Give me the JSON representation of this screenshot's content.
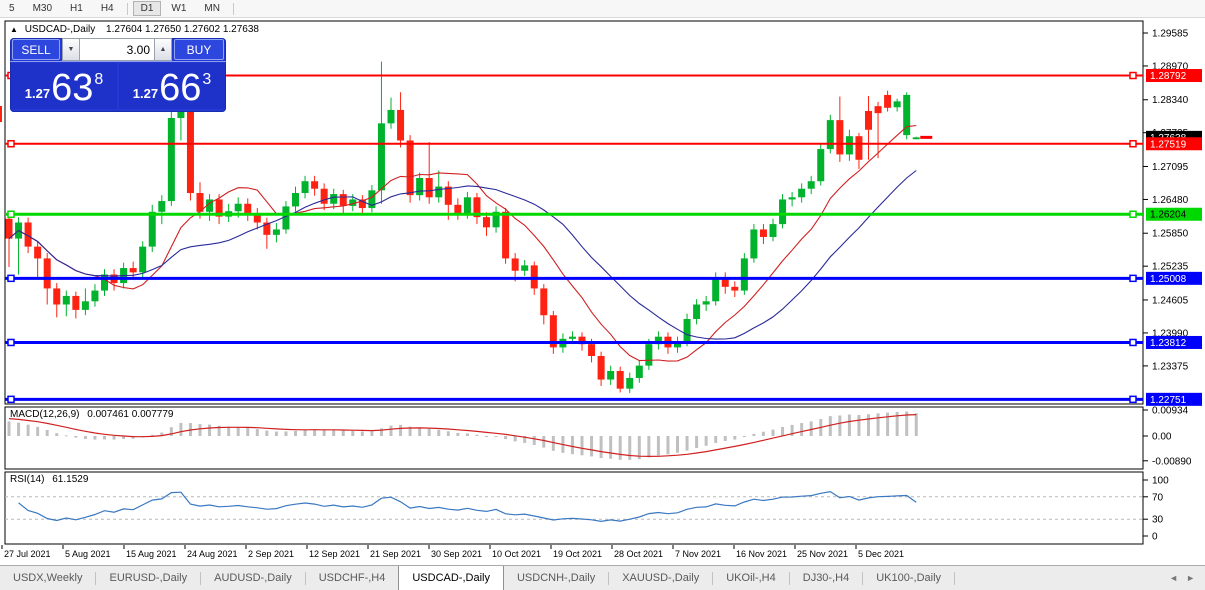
{
  "toolbar": {
    "items": [
      "5",
      "M30",
      "H1",
      "H4",
      "D1",
      "W1",
      "MN"
    ],
    "active": "D1",
    "separators_after": [
      "H4",
      "MN"
    ]
  },
  "chart_header": {
    "collapse_icon": "▲",
    "title": "USDCAD-,Daily",
    "ohlc_string": "1.27604 1.27650 1.27602 1.27638"
  },
  "trade_panel": {
    "sell_label": "SELL",
    "buy_label": "BUY",
    "volume": "3.00",
    "spin_down_icon": "▼",
    "spin_up_icon": "▲",
    "sell_price": {
      "small": "1.27",
      "big": "63",
      "sup": "8"
    },
    "buy_price": {
      "small": "1.27",
      "big": "66",
      "sup": "3"
    }
  },
  "indicators": {
    "macd": {
      "name": "MACD(12,26,9)",
      "values": "0.007461 0.007779",
      "axis_labels": [
        "0.00934",
        "0.00",
        "-0.00890"
      ],
      "params": [
        12,
        26,
        9
      ],
      "histogram_color": "#c0c0c0",
      "signal_color": "#d02020"
    },
    "rsi": {
      "name": "RSI(14)",
      "value": "61.1529",
      "axis_labels": [
        "100",
        "70",
        "30",
        "0"
      ],
      "period": 14,
      "line_color": "#3a78c2",
      "levels": [
        70,
        30
      ]
    }
  },
  "date_axis": [
    "27 Jul 2021",
    "5 Aug 2021",
    "15 Aug 2021",
    "24 Aug 2021",
    "2 Sep 2021",
    "12 Sep 2021",
    "21 Sep 2021",
    "30 Sep 2021",
    "10 Oct 2021",
    "19 Oct 2021",
    "28 Oct 2021",
    "7 Nov 2021",
    "16 Nov 2021",
    "25 Nov 2021",
    "5 Dec 2021"
  ],
  "tabs": {
    "items": [
      "USDX,Weekly",
      "EURUSD-,Daily",
      "AUDUSD-,Daily",
      "USDCHF-,H4",
      "USDCAD-,Daily",
      "USDCNH-,Daily",
      "XAUUSD-,Daily",
      "UKOil-,H4",
      "DJ30-,H4",
      "UK100-,Daily"
    ],
    "active_index": 4,
    "scroll_left_icon": "◄",
    "scroll_right_icon": "►"
  },
  "chart_data": {
    "type": "candlestick",
    "symbol": "USDCAD-",
    "timeframe": "Daily",
    "current_ohlc": {
      "open": 1.27604,
      "high": 1.2765,
      "low": 1.27602,
      "close": 1.27638
    },
    "current_price": 1.27638,
    "price_axis_ticks": [
      1.29585,
      1.2897,
      1.2834,
      1.27725,
      1.27095,
      1.2648,
      1.2585,
      1.25235,
      1.24605,
      1.2399,
      1.23375
    ],
    "price_range_top": 1.29809,
    "price_range_bottom": 1.22664,
    "bull_color": "#00b22c",
    "bear_color": "#fe2212",
    "horizontal_lines": [
      {
        "price": 1.28792,
        "color": "#ff0000",
        "text_color": "#ffffff",
        "width": 2
      },
      {
        "price": 1.27519,
        "color": "#ff0000",
        "text_color": "#ffffff",
        "width": 2
      },
      {
        "price": 1.26204,
        "color": "#00d900",
        "text_color": "#000000",
        "width": 3
      },
      {
        "price": 1.25008,
        "color": "#0000ff",
        "text_color": "#ffffff",
        "width": 3
      },
      {
        "price": 1.23812,
        "color": "#0000ff",
        "text_color": "#ffffff",
        "width": 3
      },
      {
        "price": 1.22751,
        "color": "#0000ff",
        "text_color": "#ffffff",
        "width": 3
      }
    ],
    "moving_averages": [
      {
        "period": 10,
        "color": "#d02020"
      },
      {
        "period": 20,
        "color": "#2a2a99"
      }
    ],
    "candles": [
      [
        1.2612,
        1.262,
        1.2522,
        1.2575
      ],
      [
        1.2575,
        1.2615,
        1.2508,
        1.2605
      ],
      [
        1.2605,
        1.2614,
        1.2548,
        1.256
      ],
      [
        1.256,
        1.257,
        1.25,
        1.2538
      ],
      [
        1.2538,
        1.2548,
        1.2452,
        1.2482
      ],
      [
        1.2482,
        1.2492,
        1.2428,
        1.2452
      ],
      [
        1.2452,
        1.2478,
        1.243,
        1.2468
      ],
      [
        1.2468,
        1.2476,
        1.2426,
        1.2442
      ],
      [
        1.2442,
        1.2482,
        1.2432,
        1.2458
      ],
      [
        1.2458,
        1.249,
        1.2448,
        1.2478
      ],
      [
        1.2478,
        1.2518,
        1.2468,
        1.2508
      ],
      [
        1.2508,
        1.2518,
        1.2478,
        1.2492
      ],
      [
        1.2492,
        1.253,
        1.2482,
        1.252
      ],
      [
        1.252,
        1.2532,
        1.2498,
        1.2512
      ],
      [
        1.2512,
        1.257,
        1.2502,
        1.256
      ],
      [
        1.256,
        1.2638,
        1.255,
        1.2625
      ],
      [
        1.2625,
        1.2656,
        1.2602,
        1.2645
      ],
      [
        1.2645,
        1.2812,
        1.2636,
        1.28
      ],
      [
        1.28,
        1.2845,
        1.2758,
        1.2815
      ],
      [
        1.2815,
        1.2824,
        1.2646,
        1.266
      ],
      [
        1.266,
        1.268,
        1.2612,
        1.2625
      ],
      [
        1.2625,
        1.2658,
        1.2608,
        1.2648
      ],
      [
        1.2648,
        1.2658,
        1.2602,
        1.2616
      ],
      [
        1.2616,
        1.264,
        1.2606,
        1.2626
      ],
      [
        1.2626,
        1.2652,
        1.2614,
        1.264
      ],
      [
        1.264,
        1.265,
        1.2608,
        1.262
      ],
      [
        1.262,
        1.2632,
        1.2592,
        1.2605
      ],
      [
        1.2605,
        1.2614,
        1.2556,
        1.2582
      ],
      [
        1.2582,
        1.2604,
        1.2568,
        1.2592
      ],
      [
        1.2592,
        1.2645,
        1.2584,
        1.2635
      ],
      [
        1.2635,
        1.2672,
        1.2625,
        1.266
      ],
      [
        1.266,
        1.2692,
        1.265,
        1.2682
      ],
      [
        1.2682,
        1.2692,
        1.2655,
        1.2668
      ],
      [
        1.2668,
        1.2678,
        1.2628,
        1.264
      ],
      [
        1.264,
        1.2668,
        1.263,
        1.2658
      ],
      [
        1.2658,
        1.2666,
        1.2622,
        1.2636
      ],
      [
        1.2636,
        1.2658,
        1.2626,
        1.2648
      ],
      [
        1.2648,
        1.2656,
        1.2618,
        1.2632
      ],
      [
        1.2632,
        1.2675,
        1.2624,
        1.2665
      ],
      [
        1.2665,
        1.2905,
        1.264,
        1.279
      ],
      [
        1.279,
        1.2838,
        1.278,
        1.2815
      ],
      [
        1.2815,
        1.2848,
        1.2745,
        1.2758
      ],
      [
        1.2758,
        1.2768,
        1.2642,
        1.2656
      ],
      [
        1.2656,
        1.2698,
        1.2646,
        1.2688
      ],
      [
        1.2688,
        1.2755,
        1.264,
        1.2652
      ],
      [
        1.2652,
        1.2702,
        1.2642,
        1.2672
      ],
      [
        1.2672,
        1.2682,
        1.261,
        1.2638
      ],
      [
        1.2638,
        1.265,
        1.261,
        1.2622
      ],
      [
        1.2622,
        1.2662,
        1.2612,
        1.2652
      ],
      [
        1.2652,
        1.266,
        1.2602,
        1.2615
      ],
      [
        1.2615,
        1.2624,
        1.258,
        1.2596
      ],
      [
        1.2596,
        1.2635,
        1.2586,
        1.2625
      ],
      [
        1.2625,
        1.2632,
        1.2528,
        1.2538
      ],
      [
        1.2538,
        1.2548,
        1.2495,
        1.2515
      ],
      [
        1.2515,
        1.2535,
        1.2505,
        1.2525
      ],
      [
        1.2525,
        1.2532,
        1.247,
        1.2482
      ],
      [
        1.2482,
        1.249,
        1.2415,
        1.2432
      ],
      [
        1.2432,
        1.244,
        1.236,
        1.2372
      ],
      [
        1.2372,
        1.2398,
        1.2362,
        1.2388
      ],
      [
        1.2388,
        1.2402,
        1.2378,
        1.2392
      ],
      [
        1.2392,
        1.24,
        1.2366,
        1.2378
      ],
      [
        1.2378,
        1.2388,
        1.2344,
        1.2356
      ],
      [
        1.2356,
        1.2364,
        1.23,
        1.2312
      ],
      [
        1.2312,
        1.2338,
        1.2302,
        1.2328
      ],
      [
        1.2328,
        1.2336,
        1.2288,
        1.2295
      ],
      [
        1.2295,
        1.2325,
        1.2287,
        1.2315
      ],
      [
        1.2315,
        1.2348,
        1.2306,
        1.2338
      ],
      [
        1.2338,
        1.2388,
        1.233,
        1.2378
      ],
      [
        1.2378,
        1.2402,
        1.2368,
        1.2392
      ],
      [
        1.2392,
        1.24,
        1.236,
        1.2372
      ],
      [
        1.2372,
        1.2392,
        1.2362,
        1.2382
      ],
      [
        1.2382,
        1.2435,
        1.2374,
        1.2425
      ],
      [
        1.2425,
        1.2462,
        1.2415,
        1.2452
      ],
      [
        1.2452,
        1.2468,
        1.244,
        1.2458
      ],
      [
        1.2458,
        1.2512,
        1.245,
        1.2502
      ],
      [
        1.2502,
        1.2512,
        1.2472,
        1.2485
      ],
      [
        1.2485,
        1.2495,
        1.2466,
        1.2478
      ],
      [
        1.2478,
        1.2548,
        1.247,
        1.2538
      ],
      [
        1.2538,
        1.2602,
        1.253,
        1.2592
      ],
      [
        1.2592,
        1.2602,
        1.2565,
        1.2578
      ],
      [
        1.2578,
        1.2612,
        1.257,
        1.2602
      ],
      [
        1.2602,
        1.2658,
        1.2594,
        1.2648
      ],
      [
        1.2648,
        1.2662,
        1.2635,
        1.2652
      ],
      [
        1.2652,
        1.2678,
        1.2642,
        1.2668
      ],
      [
        1.2668,
        1.2692,
        1.2658,
        1.2682
      ],
      [
        1.2682,
        1.2752,
        1.2674,
        1.2742
      ],
      [
        1.2742,
        1.2806,
        1.2734,
        1.2796
      ],
      [
        1.2796,
        1.284,
        1.2718,
        1.2732
      ],
      [
        1.2732,
        1.2778,
        1.272,
        1.2766
      ],
      [
        1.2766,
        1.2772,
        1.2705,
        1.2722
      ],
      [
        1.2813,
        1.2841,
        1.2722,
        1.2778
      ],
      [
        1.2822,
        1.283,
        1.2725,
        1.2809
      ],
      [
        1.2843,
        1.2851,
        1.2812,
        1.2819
      ],
      [
        1.282,
        1.2836,
        1.2812,
        1.2831
      ],
      [
        1.2768,
        1.2848,
        1.276,
        1.2843
      ],
      [
        1.27604,
        1.2765,
        1.27602,
        1.27638
      ]
    ]
  }
}
